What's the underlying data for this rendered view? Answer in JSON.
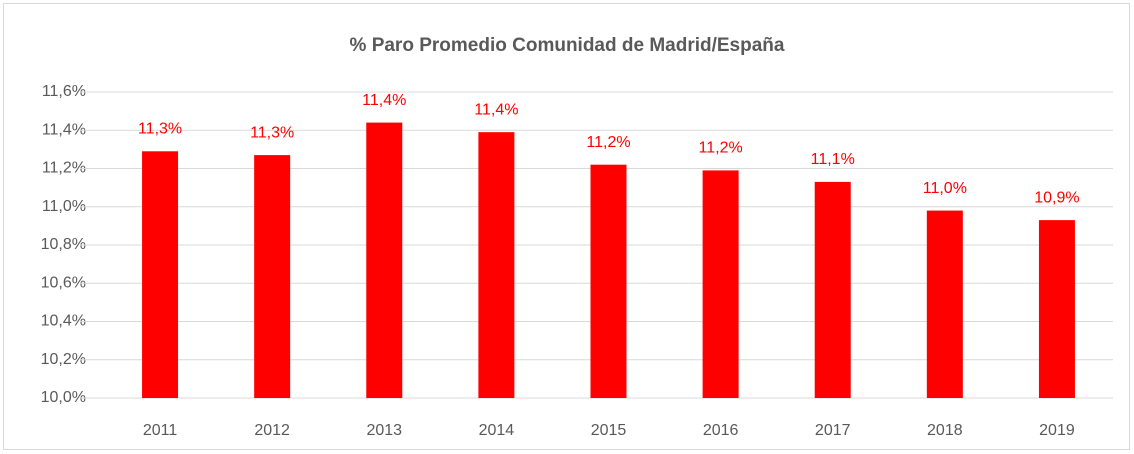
{
  "chart_data": {
    "type": "bar",
    "title": "% Paro Promedio Comunidad de Madrid/España",
    "categories": [
      "2011",
      "2012",
      "2013",
      "2014",
      "2015",
      "2016",
      "2017",
      "2018",
      "2019"
    ],
    "values": [
      11.29,
      11.27,
      11.44,
      11.39,
      11.22,
      11.19,
      11.13,
      10.98,
      10.93
    ],
    "value_labels": [
      "11,3%",
      "11,3%",
      "11,4%",
      "11,4%",
      "11,2%",
      "11,2%",
      "11,1%",
      "11,0%",
      "10,9%"
    ],
    "color": "#ff0000",
    "ylim": [
      10.0,
      11.6
    ],
    "yticks": [
      {
        "value": 10.0,
        "label": "10,0%"
      },
      {
        "value": 10.2,
        "label": "10,2%"
      },
      {
        "value": 10.4,
        "label": "10,4%"
      },
      {
        "value": 10.6,
        "label": "10,6%"
      },
      {
        "value": 10.8,
        "label": "10,8%"
      },
      {
        "value": 11.0,
        "label": "11,0%"
      },
      {
        "value": 11.2,
        "label": "11,2%"
      },
      {
        "value": 11.4,
        "label": "11,4%"
      },
      {
        "value": 11.6,
        "label": "11,6%"
      }
    ],
    "grid": true
  }
}
